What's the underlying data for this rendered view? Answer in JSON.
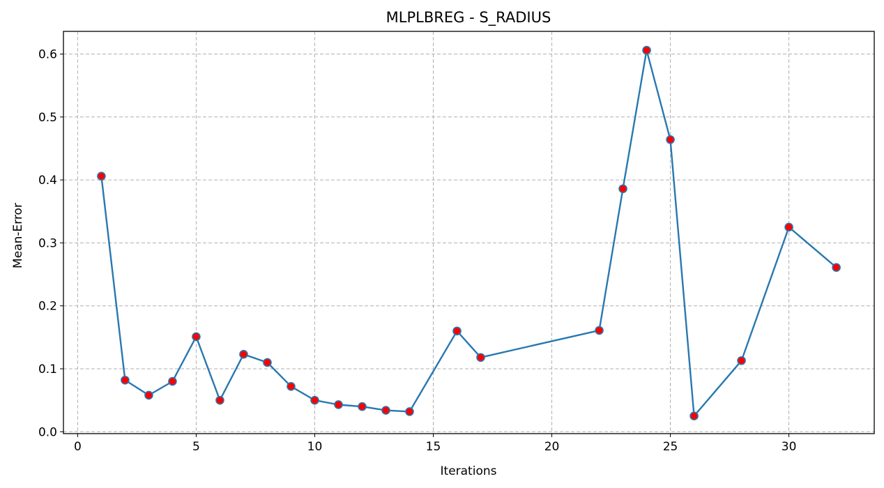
{
  "chart_data": {
    "type": "line",
    "title": "MLPLBREG - S_RADIUS",
    "xlabel": "Iterations",
    "ylabel": "Mean-Error",
    "xlim": [
      -0.6,
      33.6
    ],
    "ylim": [
      -0.003,
      0.636
    ],
    "xticks": [
      0,
      5,
      10,
      15,
      20,
      25,
      30
    ],
    "yticks": [
      0.0,
      0.1,
      0.2,
      0.3,
      0.4,
      0.5,
      0.6
    ],
    "xtick_labels": [
      "0",
      "5",
      "10",
      "15",
      "20",
      "25",
      "30"
    ],
    "ytick_labels": [
      "0.0",
      "0.1",
      "0.2",
      "0.3",
      "0.4",
      "0.5",
      "0.6"
    ],
    "grid": true,
    "legend": "none",
    "series": [
      {
        "x": [
          1,
          2,
          3,
          4,
          5,
          6,
          7,
          8,
          9,
          10,
          11,
          12,
          13,
          14,
          16,
          17,
          22,
          23,
          24,
          25,
          26,
          28,
          30,
          32
        ],
        "y": [
          0.406,
          0.082,
          0.058,
          0.08,
          0.151,
          0.05,
          0.123,
          0.11,
          0.072,
          0.05,
          0.043,
          0.04,
          0.034,
          0.032,
          0.16,
          0.118,
          0.161,
          0.386,
          0.606,
          0.464,
          0.025,
          0.113,
          0.325,
          0.261
        ],
        "line_color": "#2878b0",
        "marker_face_color": "#ff0000",
        "marker_edge_color": "#2878b0"
      }
    ]
  }
}
